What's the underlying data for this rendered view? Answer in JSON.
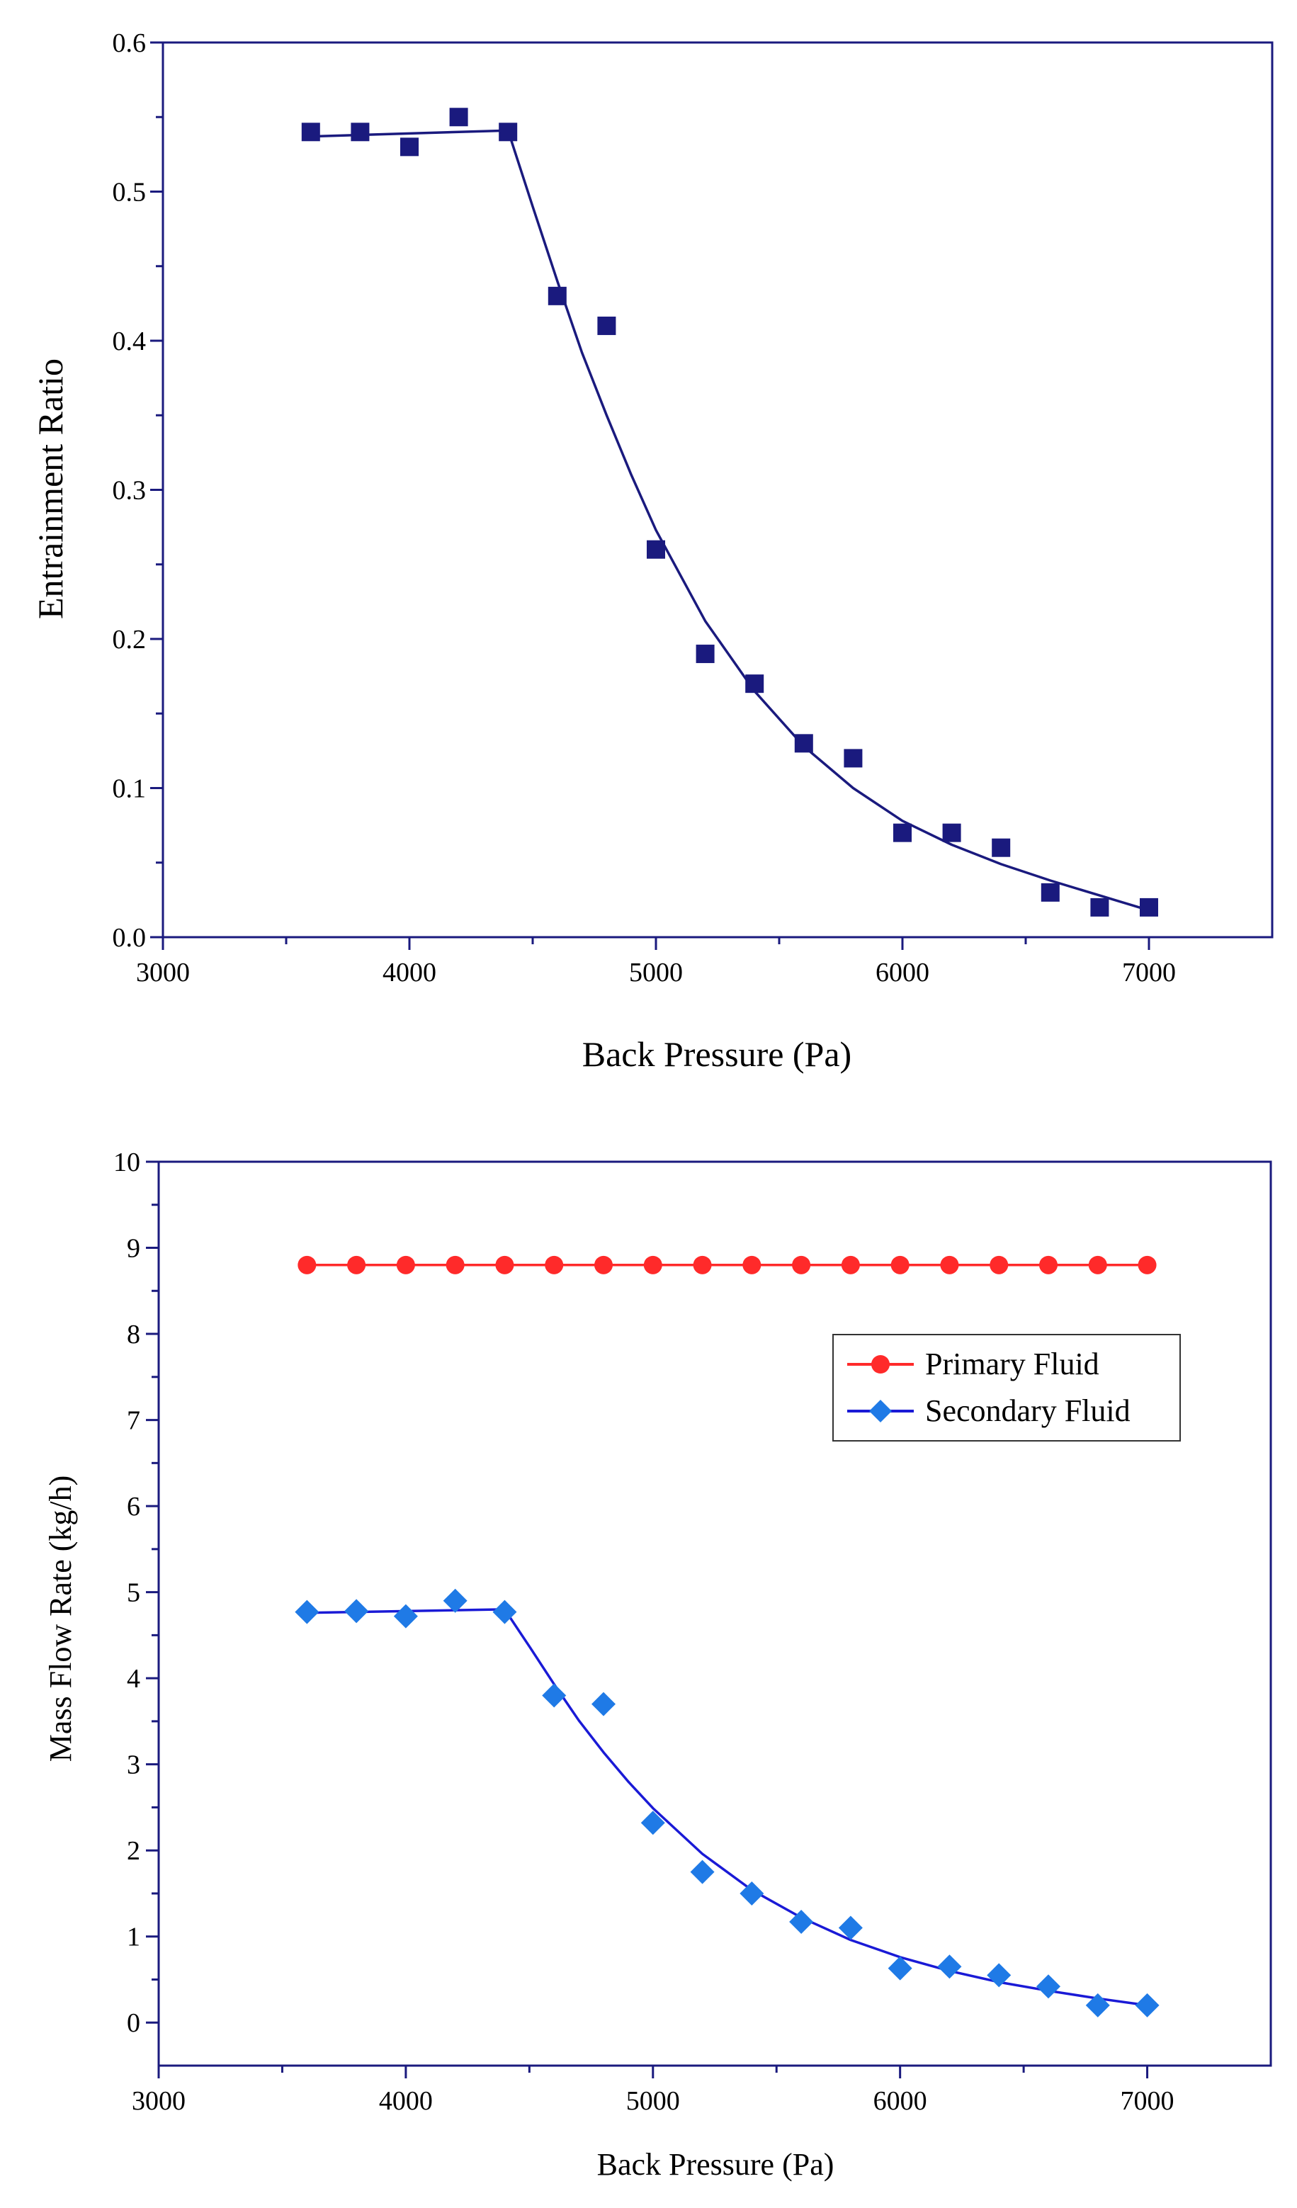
{
  "chart_data": [
    {
      "type": "scatter",
      "title": "",
      "xlabel": "Back Pressure (Pa)",
      "ylabel": "Entrainment Ratio",
      "xlim": [
        3000,
        7500
      ],
      "ylim": [
        0.0,
        0.6
      ],
      "xticks": [
        3000,
        4000,
        5000,
        6000,
        7000
      ],
      "xtick_labels": [
        "3000",
        "4000",
        "5000",
        "6000",
        "7000"
      ],
      "yticks": [
        0.0,
        0.1,
        0.2,
        0.3,
        0.4,
        0.5,
        0.6
      ],
      "ytick_labels": [
        "0.0",
        "0.1",
        "0.2",
        "0.3",
        "0.4",
        "0.5",
        "0.6"
      ],
      "grid": false,
      "legend": null,
      "series": [
        {
          "name": "Entrainment Ratio",
          "marker": "square",
          "color": "#1a1a7e",
          "x": [
            3600,
            3800,
            4000,
            4200,
            4400,
            4600,
            4800,
            5000,
            5200,
            5400,
            5600,
            5800,
            6000,
            6200,
            6400,
            6600,
            6800,
            7000
          ],
          "y": [
            0.54,
            0.54,
            0.53,
            0.55,
            0.54,
            0.43,
            0.41,
            0.26,
            0.19,
            0.17,
            0.13,
            0.12,
            0.07,
            0.07,
            0.06,
            0.03,
            0.02,
            0.02
          ]
        }
      ],
      "fit_curve": {
        "color": "#1a1a7e",
        "x": [
          3600,
          4000,
          4400,
          4500,
          4600,
          4700,
          4800,
          4900,
          5000,
          5200,
          5400,
          5600,
          5800,
          6000,
          6200,
          6400,
          6600,
          6800,
          7000
        ],
        "y": [
          0.537,
          0.539,
          0.541,
          0.49,
          0.44,
          0.392,
          0.35,
          0.31,
          0.273,
          0.212,
          0.165,
          0.128,
          0.1,
          0.078,
          0.062,
          0.049,
          0.038,
          0.028,
          0.018
        ]
      }
    },
    {
      "type": "line",
      "title": "",
      "xlabel": "Back Pressure (Pa)",
      "ylabel": "Mass Flow Rate (kg/h)",
      "xlim": [
        3000,
        7500
      ],
      "ylim": [
        -0.5,
        10
      ],
      "xticks": [
        3000,
        4000,
        5000,
        6000,
        7000
      ],
      "xtick_labels": [
        "3000",
        "4000",
        "5000",
        "6000",
        "7000"
      ],
      "yticks": [
        0,
        1,
        2,
        3,
        4,
        5,
        6,
        7,
        8,
        9,
        10
      ],
      "ytick_labels": [
        "0",
        "1",
        "2",
        "3",
        "4",
        "5",
        "6",
        "7",
        "8",
        "9",
        "10"
      ],
      "grid": false,
      "legend_position": "upper-right",
      "series": [
        {
          "name": "Primary Fluid",
          "marker": "circle",
          "color": "#ff2a2a",
          "x": [
            3600,
            3800,
            4000,
            4200,
            4400,
            4600,
            4800,
            5000,
            5200,
            5400,
            5600,
            5800,
            6000,
            6200,
            6400,
            6600,
            6800,
            7000
          ],
          "y": [
            8.8,
            8.8,
            8.8,
            8.8,
            8.8,
            8.8,
            8.8,
            8.8,
            8.8,
            8.8,
            8.8,
            8.8,
            8.8,
            8.8,
            8.8,
            8.8,
            8.8,
            8.8
          ],
          "fit_curve": {
            "color": "#ff2a2a",
            "x": [
              3600,
              7000
            ],
            "y": [
              8.8,
              8.8
            ]
          }
        },
        {
          "name": "Secondary Fluid",
          "marker": "diamond",
          "color": "#1f7ae6",
          "x": [
            3600,
            3800,
            4000,
            4200,
            4400,
            4600,
            4800,
            5000,
            5200,
            5400,
            5600,
            5800,
            6000,
            6200,
            6400,
            6600,
            6800,
            7000
          ],
          "y": [
            4.77,
            4.78,
            4.72,
            4.9,
            4.77,
            3.8,
            3.7,
            2.32,
            1.75,
            1.5,
            1.17,
            1.1,
            0.63,
            0.65,
            0.55,
            0.42,
            0.2,
            0.2
          ],
          "fit_curve": {
            "color": "#1a1ad6",
            "x": [
              3600,
              4000,
              4400,
              4500,
              4600,
              4700,
              4800,
              4900,
              5000,
              5200,
              5400,
              5600,
              5800,
              6000,
              6200,
              6400,
              6600,
              6800,
              7000
            ],
            "y": [
              4.76,
              4.78,
              4.8,
              4.37,
              3.93,
              3.51,
              3.14,
              2.8,
              2.49,
              1.96,
              1.54,
              1.22,
              0.96,
              0.76,
              0.6,
              0.47,
              0.37,
              0.28,
              0.2
            ]
          }
        }
      ]
    }
  ]
}
